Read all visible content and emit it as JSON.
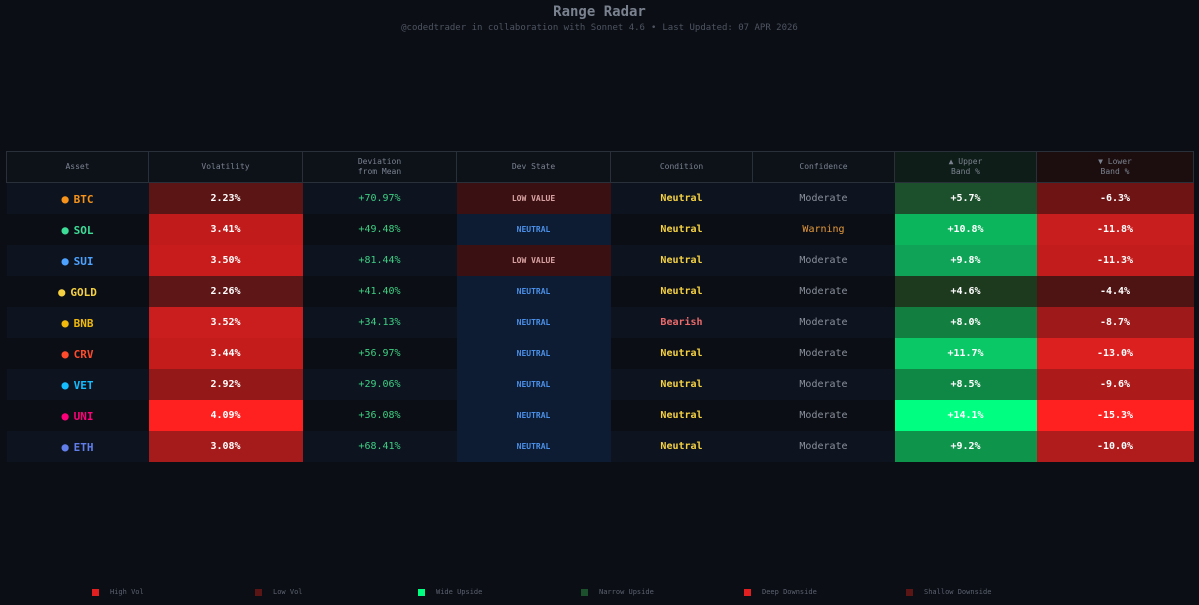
{
  "header": {
    "title": "Range Radar",
    "subtitle_left": "@codedtrader in collaboration with Sonnet 4.6",
    "separator": "•",
    "subtitle_right": "Last Updated: 07 APR 2026"
  },
  "columns": {
    "asset": "Asset",
    "volatility": "Volatility",
    "deviation_l1": "Deviation",
    "deviation_l2": "from Mean",
    "dev_state": "Dev State",
    "condition": "Condition",
    "confidence": "Confidence",
    "upper_l1": "▲ Upper",
    "upper_l2": "Band %",
    "lower_l1": "▼ Lower",
    "lower_l2": "Band %"
  },
  "rows": [
    {
      "asset": "BTC",
      "bullet": "●",
      "asset_color": "#f7931a",
      "volatility": "2.23%",
      "vol_bg": "#5c1515",
      "deviation": "+70.97%",
      "dev_state": "LOW VALUE",
      "state_kind": "lowvalue",
      "condition": "Neutral",
      "cond_color": "#f5d142",
      "confidence": "Moderate",
      "conf_color": "#8a919c",
      "upper": "+5.7%",
      "upper_bg": "#1c4f2b",
      "upper_text": "light",
      "lower": "-6.3%",
      "lower_bg": "#6e1414"
    },
    {
      "asset": "SOL",
      "bullet": "●",
      "asset_color": "#3ddc97",
      "volatility": "3.41%",
      "vol_bg": "#c21b1b",
      "deviation": "+49.48%",
      "dev_state": "NEUTRAL",
      "state_kind": "neutral",
      "condition": "Neutral",
      "cond_color": "#f5d142",
      "confidence": "Warning",
      "conf_color": "#e69a3c",
      "upper": "+10.8%",
      "upper_bg": "#0ab55c",
      "upper_text": "light",
      "lower": "-11.8%",
      "lower_bg": "#c81e1e"
    },
    {
      "asset": "SUI",
      "bullet": "●",
      "asset_color": "#4da2ff",
      "volatility": "3.50%",
      "vol_bg": "#c81c1c",
      "deviation": "+81.44%",
      "dev_state": "LOW VALUE",
      "state_kind": "lowvalue",
      "condition": "Neutral",
      "cond_color": "#f5d142",
      "confidence": "Moderate",
      "conf_color": "#8a919c",
      "upper": "+9.8%",
      "upper_bg": "#0ea357",
      "upper_text": "light",
      "lower": "-11.3%",
      "lower_bg": "#c21c1c"
    },
    {
      "asset": "GOLD",
      "bullet": "●",
      "asset_color": "#f5d142",
      "volatility": "2.26%",
      "vol_bg": "#5e1616",
      "deviation": "+41.40%",
      "dev_state": "NEUTRAL",
      "state_kind": "neutral",
      "condition": "Neutral",
      "cond_color": "#f5d142",
      "confidence": "Moderate",
      "conf_color": "#8a919c",
      "upper": "+4.6%",
      "upper_bg": "#1d3a1e",
      "upper_text": "light",
      "lower": "-4.4%",
      "lower_bg": "#4e1414"
    },
    {
      "asset": "BNB",
      "bullet": "●",
      "asset_color": "#f0b90b",
      "volatility": "3.52%",
      "vol_bg": "#ca1d1d",
      "deviation": "+34.13%",
      "dev_state": "NEUTRAL",
      "state_kind": "neutral",
      "condition": "Bearish",
      "cond_color": "#ec6a6a",
      "confidence": "Moderate",
      "conf_color": "#8a919c",
      "upper": "+8.0%",
      "upper_bg": "#127f40",
      "upper_text": "light",
      "lower": "-8.7%",
      "lower_bg": "#9e1919"
    },
    {
      "asset": "CRV",
      "bullet": "●",
      "asset_color": "#ff4b2b",
      "volatility": "3.44%",
      "vol_bg": "#c41b1b",
      "deviation": "+56.97%",
      "dev_state": "NEUTRAL",
      "state_kind": "neutral",
      "condition": "Neutral",
      "cond_color": "#f5d142",
      "confidence": "Moderate",
      "conf_color": "#8a919c",
      "upper": "+11.7%",
      "upper_bg": "#0bc866",
      "upper_text": "light",
      "lower": "-13.0%",
      "lower_bg": "#dc1f1f"
    },
    {
      "asset": "VET",
      "bullet": "●",
      "asset_color": "#15bdff",
      "volatility": "2.92%",
      "vol_bg": "#941818",
      "deviation": "+29.06%",
      "dev_state": "NEUTRAL",
      "state_kind": "neutral",
      "condition": "Neutral",
      "cond_color": "#f5d142",
      "confidence": "Moderate",
      "conf_color": "#8a919c",
      "upper": "+8.5%",
      "upper_bg": "#0f8845",
      "upper_text": "light",
      "lower": "-9.6%",
      "lower_bg": "#ad1a1a"
    },
    {
      "asset": "UNI",
      "bullet": "●",
      "asset_color": "#ff007a",
      "volatility": "4.09%",
      "vol_bg": "#ff2020",
      "deviation": "+36.08%",
      "dev_state": "NEUTRAL",
      "state_kind": "neutral",
      "condition": "Neutral",
      "cond_color": "#f5d142",
      "confidence": "Moderate",
      "conf_color": "#8a919c",
      "upper": "+14.1%",
      "upper_bg": "#00ff80",
      "upper_text": "light",
      "lower": "-15.3%",
      "lower_bg": "#ff2020"
    },
    {
      "asset": "ETH",
      "bullet": "●",
      "asset_color": "#627eea",
      "volatility": "3.08%",
      "vol_bg": "#a51a1a",
      "deviation": "+68.41%",
      "dev_state": "NEUTRAL",
      "state_kind": "neutral",
      "condition": "Neutral",
      "cond_color": "#f5d142",
      "confidence": "Moderate",
      "conf_color": "#8a919c",
      "upper": "+9.2%",
      "upper_bg": "#0f944c",
      "upper_text": "light",
      "lower": "-10.0%",
      "lower_bg": "#b01b1b"
    }
  ],
  "legend": [
    {
      "label": "High Vol",
      "color": "#e02020"
    },
    {
      "label": "Low Vol",
      "color": "#5c1515"
    },
    {
      "label": "Wide Upside",
      "color": "#00ff80"
    },
    {
      "label": "Narrow Upside",
      "color": "#1c4f2b"
    },
    {
      "label": "Deep Downside",
      "color": "#e02020"
    },
    {
      "label": "Shallow Downside",
      "color": "#5c1515"
    }
  ]
}
